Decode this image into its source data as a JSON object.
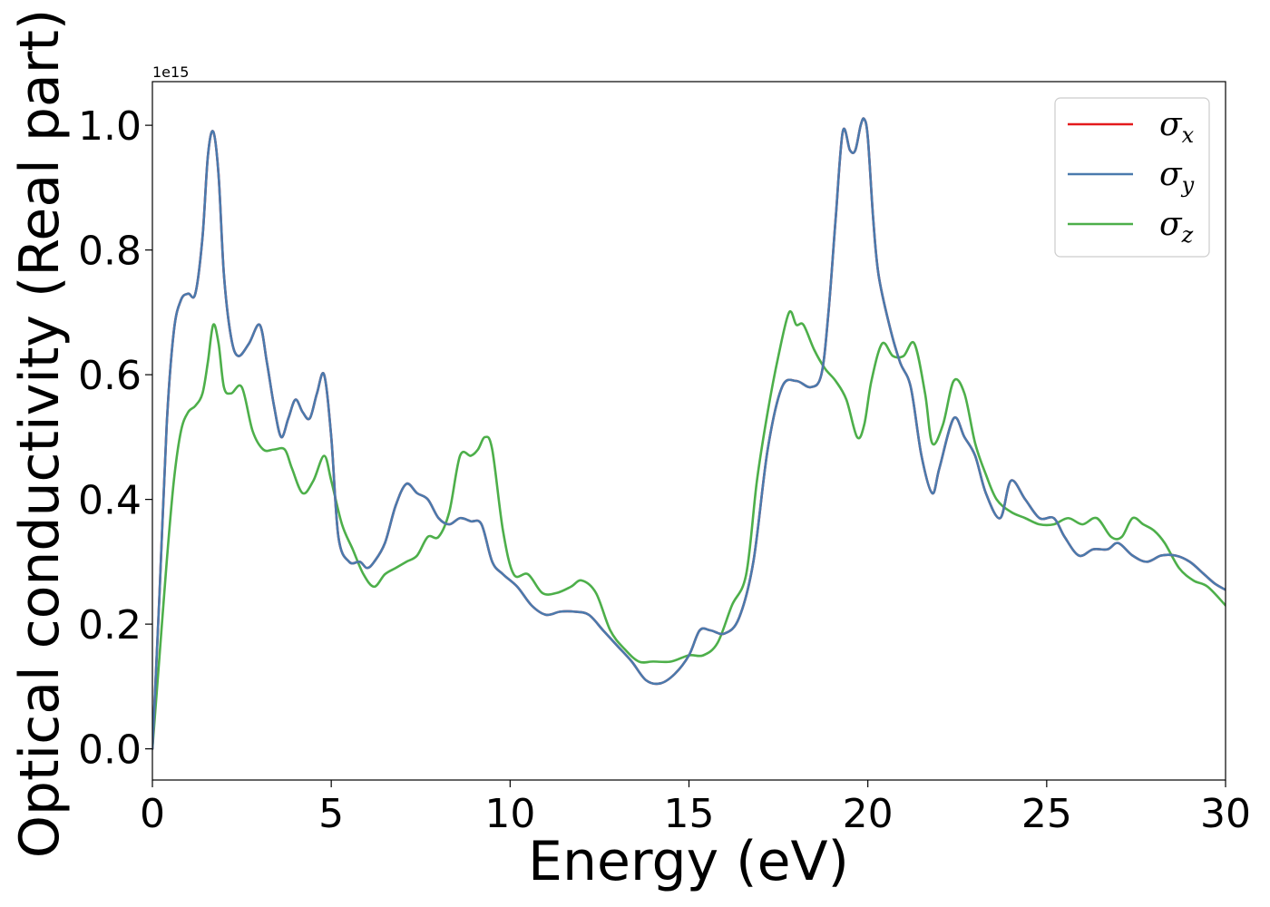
{
  "chart_data": {
    "type": "line",
    "title": "",
    "xlabel": "Energy (eV)",
    "ylabel": "Optical conductivity (Real part)",
    "y_offset_text": "1e15",
    "xlim": [
      0,
      30
    ],
    "ylim": [
      -0.05,
      1.07
    ],
    "xticks": [
      0,
      5,
      10,
      15,
      20,
      25,
      30
    ],
    "xtick_labels": [
      "0",
      "5",
      "10",
      "15",
      "20",
      "25",
      "30"
    ],
    "yticks": [
      0.0,
      0.2,
      0.4,
      0.6,
      0.8,
      1.0
    ],
    "ytick_labels": [
      "0.0",
      "0.2",
      "0.4",
      "0.6",
      "0.8",
      "1.0"
    ],
    "grid": false,
    "legend_position": "top-right",
    "series": [
      {
        "name": "σx",
        "legend_base": "σ",
        "legend_sub": "x",
        "color": "#e41a1c",
        "x": [
          0,
          0.2,
          0.4,
          0.6,
          0.8,
          1.0,
          1.2,
          1.4,
          1.55,
          1.7,
          1.85,
          2.0,
          2.2,
          2.4,
          2.7,
          3.0,
          3.2,
          3.4,
          3.6,
          3.8,
          4.0,
          4.2,
          4.4,
          4.6,
          4.8,
          5.0,
          5.2,
          5.5,
          5.8,
          6.0,
          6.2,
          6.5,
          6.8,
          7.1,
          7.4,
          7.7,
          8.0,
          8.3,
          8.6,
          8.9,
          9.2,
          9.5,
          9.8,
          10.2,
          10.6,
          11.0,
          11.4,
          11.8,
          12.2,
          12.6,
          13.0,
          13.4,
          13.8,
          14.2,
          14.6,
          15.0,
          15.3,
          15.6,
          16.0,
          16.4,
          16.8,
          17.2,
          17.6,
          18.0,
          18.4,
          18.7,
          18.9,
          19.1,
          19.3,
          19.5,
          19.65,
          19.8,
          19.9,
          20.0,
          20.15,
          20.3,
          20.6,
          20.9,
          21.2,
          21.5,
          21.8,
          22.0,
          22.4,
          22.7,
          23.0,
          23.3,
          23.7,
          24.0,
          24.4,
          24.8,
          25.2,
          25.5,
          25.9,
          26.3,
          26.7,
          27.0,
          27.4,
          27.8,
          28.2,
          28.6,
          29.0,
          29.4,
          29.7,
          30.0
        ],
        "y": [
          0,
          0.25,
          0.52,
          0.67,
          0.72,
          0.73,
          0.73,
          0.82,
          0.95,
          0.99,
          0.92,
          0.76,
          0.66,
          0.63,
          0.65,
          0.68,
          0.62,
          0.55,
          0.5,
          0.53,
          0.56,
          0.54,
          0.53,
          0.57,
          0.6,
          0.5,
          0.34,
          0.3,
          0.3,
          0.29,
          0.3,
          0.33,
          0.39,
          0.425,
          0.41,
          0.4,
          0.37,
          0.36,
          0.37,
          0.365,
          0.36,
          0.3,
          0.28,
          0.26,
          0.23,
          0.215,
          0.22,
          0.22,
          0.215,
          0.19,
          0.165,
          0.14,
          0.11,
          0.105,
          0.12,
          0.15,
          0.19,
          0.19,
          0.185,
          0.21,
          0.3,
          0.48,
          0.58,
          0.59,
          0.58,
          0.6,
          0.7,
          0.85,
          0.99,
          0.96,
          0.96,
          1.0,
          1.01,
          0.98,
          0.85,
          0.76,
          0.68,
          0.62,
          0.58,
          0.47,
          0.41,
          0.45,
          0.53,
          0.5,
          0.47,
          0.41,
          0.37,
          0.43,
          0.4,
          0.37,
          0.37,
          0.34,
          0.31,
          0.32,
          0.32,
          0.33,
          0.31,
          0.3,
          0.31,
          0.31,
          0.3,
          0.28,
          0.265,
          0.255
        ]
      },
      {
        "name": "σy",
        "legend_base": "σ",
        "legend_sub": "y",
        "color": "#4a7aad",
        "x": [
          0,
          0.2,
          0.4,
          0.6,
          0.8,
          1.0,
          1.2,
          1.4,
          1.55,
          1.7,
          1.85,
          2.0,
          2.2,
          2.4,
          2.7,
          3.0,
          3.2,
          3.4,
          3.6,
          3.8,
          4.0,
          4.2,
          4.4,
          4.6,
          4.8,
          5.0,
          5.2,
          5.5,
          5.8,
          6.0,
          6.2,
          6.5,
          6.8,
          7.1,
          7.4,
          7.7,
          8.0,
          8.3,
          8.6,
          8.9,
          9.2,
          9.5,
          9.8,
          10.2,
          10.6,
          11.0,
          11.4,
          11.8,
          12.2,
          12.6,
          13.0,
          13.4,
          13.8,
          14.2,
          14.6,
          15.0,
          15.3,
          15.6,
          16.0,
          16.4,
          16.8,
          17.2,
          17.6,
          18.0,
          18.4,
          18.7,
          18.9,
          19.1,
          19.3,
          19.5,
          19.65,
          19.8,
          19.9,
          20.0,
          20.15,
          20.3,
          20.6,
          20.9,
          21.2,
          21.5,
          21.8,
          22.0,
          22.4,
          22.7,
          23.0,
          23.3,
          23.7,
          24.0,
          24.4,
          24.8,
          25.2,
          25.5,
          25.9,
          26.3,
          26.7,
          27.0,
          27.4,
          27.8,
          28.2,
          28.6,
          29.0,
          29.4,
          29.7,
          30.0
        ],
        "y": [
          0,
          0.25,
          0.52,
          0.67,
          0.72,
          0.73,
          0.73,
          0.82,
          0.95,
          0.99,
          0.92,
          0.76,
          0.66,
          0.63,
          0.65,
          0.68,
          0.62,
          0.55,
          0.5,
          0.53,
          0.56,
          0.54,
          0.53,
          0.57,
          0.6,
          0.5,
          0.34,
          0.3,
          0.3,
          0.29,
          0.3,
          0.33,
          0.39,
          0.425,
          0.41,
          0.4,
          0.37,
          0.36,
          0.37,
          0.365,
          0.36,
          0.3,
          0.28,
          0.26,
          0.23,
          0.215,
          0.22,
          0.22,
          0.215,
          0.19,
          0.165,
          0.14,
          0.11,
          0.105,
          0.12,
          0.15,
          0.19,
          0.19,
          0.185,
          0.21,
          0.3,
          0.48,
          0.58,
          0.59,
          0.58,
          0.6,
          0.7,
          0.85,
          0.99,
          0.96,
          0.96,
          1.0,
          1.01,
          0.98,
          0.85,
          0.76,
          0.68,
          0.62,
          0.58,
          0.47,
          0.41,
          0.45,
          0.53,
          0.5,
          0.47,
          0.41,
          0.37,
          0.43,
          0.4,
          0.37,
          0.37,
          0.34,
          0.31,
          0.32,
          0.32,
          0.33,
          0.31,
          0.3,
          0.31,
          0.31,
          0.3,
          0.28,
          0.265,
          0.255
        ]
      },
      {
        "name": "σz",
        "legend_base": "σ",
        "legend_sub": "z",
        "color": "#4daf4a",
        "x": [
          0,
          0.2,
          0.4,
          0.6,
          0.8,
          1.0,
          1.2,
          1.4,
          1.55,
          1.7,
          1.85,
          2.0,
          2.2,
          2.5,
          2.8,
          3.1,
          3.4,
          3.7,
          3.9,
          4.2,
          4.5,
          4.8,
          5.0,
          5.3,
          5.6,
          5.9,
          6.2,
          6.5,
          6.8,
          7.1,
          7.4,
          7.7,
          8.0,
          8.3,
          8.6,
          8.9,
          9.1,
          9.3,
          9.5,
          9.8,
          10.1,
          10.5,
          10.9,
          11.3,
          11.7,
          12.0,
          12.4,
          12.8,
          13.2,
          13.6,
          14.0,
          14.5,
          15.0,
          15.4,
          15.8,
          16.2,
          16.6,
          16.9,
          17.2,
          17.5,
          17.8,
          18.0,
          18.2,
          18.5,
          18.8,
          19.1,
          19.4,
          19.7,
          19.9,
          20.1,
          20.4,
          20.7,
          21.0,
          21.3,
          21.6,
          21.8,
          22.1,
          22.4,
          22.7,
          23.0,
          23.3,
          23.6,
          24.0,
          24.4,
          24.8,
          25.2,
          25.6,
          26.0,
          26.4,
          26.8,
          27.1,
          27.4,
          27.7,
          28.0,
          28.3,
          28.7,
          29.1,
          29.5,
          30.0
        ],
        "y": [
          0,
          0.15,
          0.3,
          0.43,
          0.51,
          0.54,
          0.55,
          0.57,
          0.62,
          0.68,
          0.65,
          0.58,
          0.57,
          0.58,
          0.51,
          0.48,
          0.48,
          0.48,
          0.45,
          0.41,
          0.43,
          0.47,
          0.43,
          0.36,
          0.32,
          0.28,
          0.26,
          0.28,
          0.29,
          0.3,
          0.31,
          0.34,
          0.34,
          0.38,
          0.47,
          0.47,
          0.48,
          0.5,
          0.48,
          0.35,
          0.28,
          0.28,
          0.25,
          0.25,
          0.26,
          0.27,
          0.25,
          0.19,
          0.16,
          0.14,
          0.14,
          0.14,
          0.15,
          0.15,
          0.17,
          0.23,
          0.28,
          0.43,
          0.54,
          0.63,
          0.7,
          0.68,
          0.68,
          0.64,
          0.61,
          0.59,
          0.56,
          0.5,
          0.52,
          0.59,
          0.65,
          0.63,
          0.63,
          0.65,
          0.57,
          0.49,
          0.52,
          0.59,
          0.57,
          0.49,
          0.44,
          0.4,
          0.38,
          0.37,
          0.36,
          0.36,
          0.37,
          0.36,
          0.37,
          0.34,
          0.34,
          0.37,
          0.36,
          0.35,
          0.33,
          0.29,
          0.27,
          0.26,
          0.23
        ]
      }
    ]
  }
}
